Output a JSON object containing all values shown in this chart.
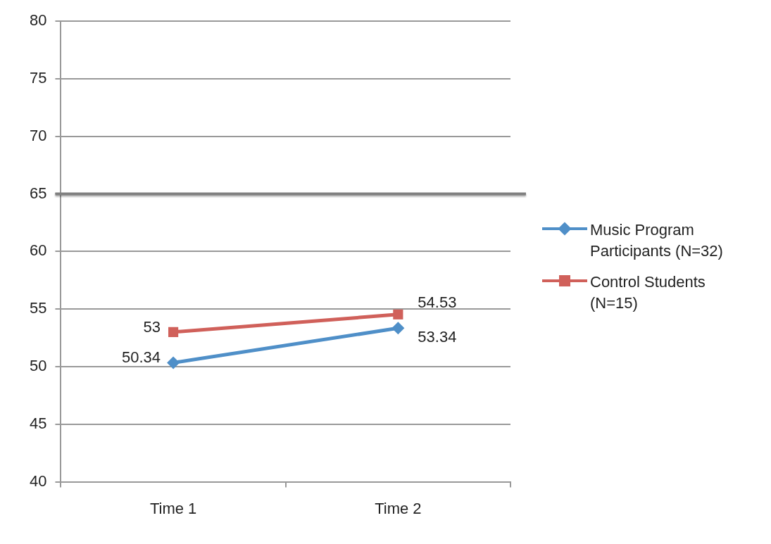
{
  "chart_data": {
    "type": "line",
    "categories": [
      "Time 1",
      "Time 2"
    ],
    "series": [
      {
        "name": "Music Program Participants (N=32)",
        "color": "#4f8fc8",
        "marker": "diamond",
        "values": [
          50.34,
          53.34
        ]
      },
      {
        "name": "Control Students (N=15)",
        "color": "#d0605a",
        "marker": "square",
        "values": [
          53,
          54.53
        ]
      }
    ],
    "ylim": [
      40,
      80
    ],
    "yticks": [
      40,
      45,
      50,
      55,
      60,
      65,
      70,
      75,
      80
    ],
    "grid": "y",
    "legend": "right",
    "data_labels": true,
    "ref_lines": [
      {
        "axis": "y",
        "value": 65,
        "color": "#808080"
      }
    ]
  }
}
